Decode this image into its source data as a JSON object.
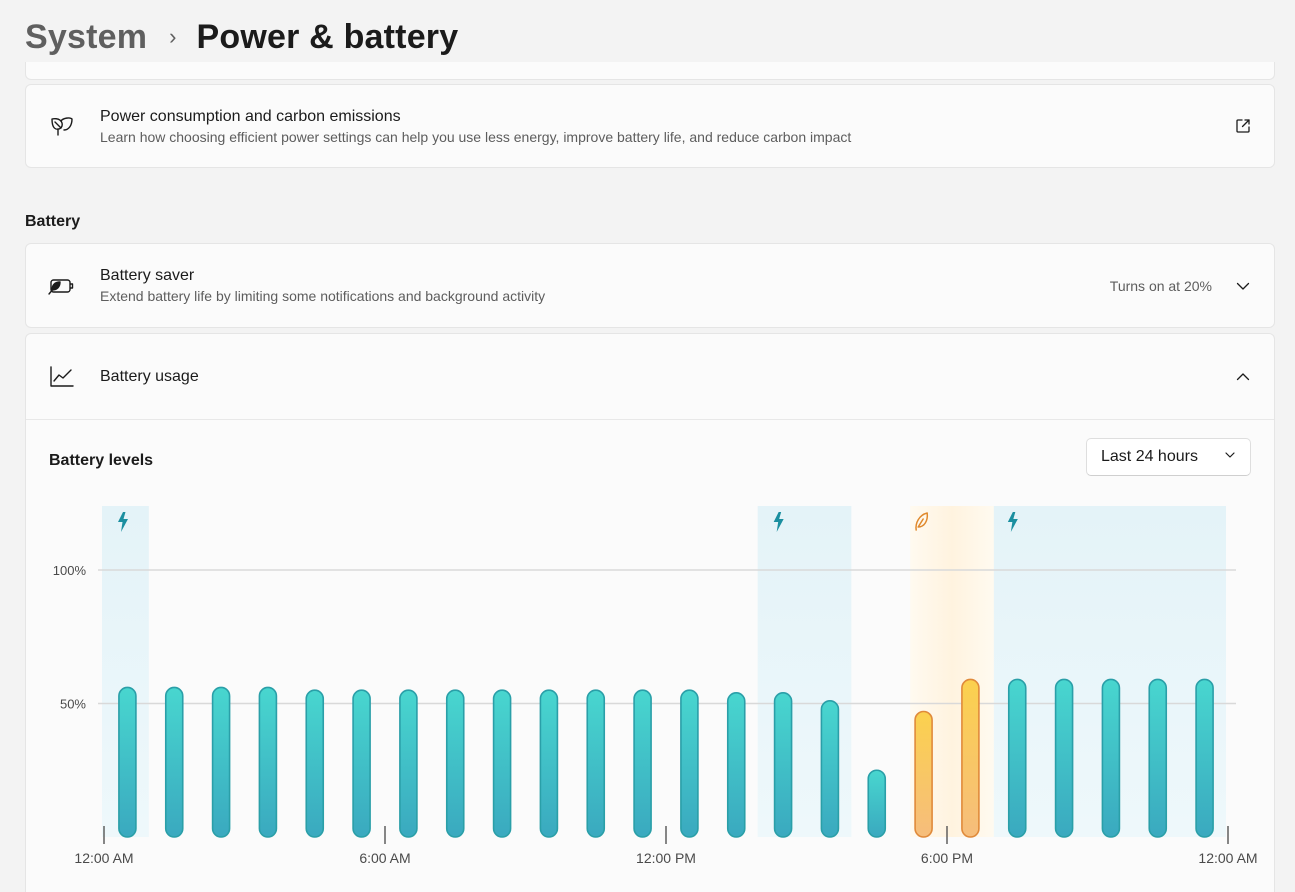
{
  "header": {
    "parent": "System",
    "separator": "›",
    "current": "Power & battery"
  },
  "power_consumption": {
    "title": "Power consumption and carbon emissions",
    "subtitle": "Learn how choosing efficient power settings can help you use less energy, improve battery life, and reduce carbon impact",
    "icon": "leaf-icon",
    "action_icon": "open-external-icon"
  },
  "battery_section": {
    "label": "Battery"
  },
  "battery_saver": {
    "title": "Battery saver",
    "subtitle": "Extend battery life by limiting some notifications and background activity",
    "value": "Turns on at 20%",
    "icon": "battery-saver-icon",
    "chevron": "chevron-down-icon"
  },
  "battery_usage": {
    "title": "Battery usage",
    "icon": "line-chart-icon",
    "chevron": "chevron-up-icon",
    "levels_title": "Battery levels",
    "range_select": {
      "value": "Last 24 hours",
      "icon": "chevron-down-icon"
    }
  },
  "colors": {
    "bar_normal": "#3fc6c6",
    "bar_normal_stroke": "#2a9fa8",
    "bar_saver": "#f7c04f",
    "bar_saver_stroke": "#e08a3a",
    "charging_band": "#eaf6fa",
    "saver_band": "#fff6e6",
    "charging_icon": "#1b8fa0",
    "saver_icon": "#e0892c",
    "gridline": "#d9d9d9"
  },
  "chart_data": {
    "type": "bar",
    "title": "Battery levels",
    "ylim": [
      0,
      100
    ],
    "yticks": [
      "100%",
      "50%"
    ],
    "xtick_labels": [
      "12:00 AM",
      "6:00 AM",
      "12:00 PM",
      "6:00 PM",
      "12:00 AM"
    ],
    "grid": true,
    "series": [
      {
        "values": [
          56,
          56,
          56,
          56,
          55,
          55,
          55,
          55,
          55,
          55,
          55,
          55,
          55,
          54,
          54,
          51,
          25,
          47,
          59,
          59,
          59,
          59,
          59,
          59
        ],
        "modes": [
          "normal",
          "normal",
          "normal",
          "normal",
          "normal",
          "normal",
          "normal",
          "normal",
          "normal",
          "normal",
          "normal",
          "normal",
          "normal",
          "normal",
          "normal",
          "normal",
          "normal",
          "saver",
          "saver",
          "normal",
          "normal",
          "normal",
          "normal",
          "normal"
        ]
      }
    ],
    "charging_periods": [
      [
        0,
        1
      ],
      [
        14,
        16
      ],
      [
        19,
        24
      ]
    ],
    "saver_periods": [
      [
        17,
        19
      ]
    ],
    "markers": [
      {
        "type": "charging",
        "hour": 0
      },
      {
        "type": "charging",
        "hour": 14
      },
      {
        "type": "saver",
        "hour": 17
      },
      {
        "type": "charging",
        "hour": 19
      }
    ]
  }
}
